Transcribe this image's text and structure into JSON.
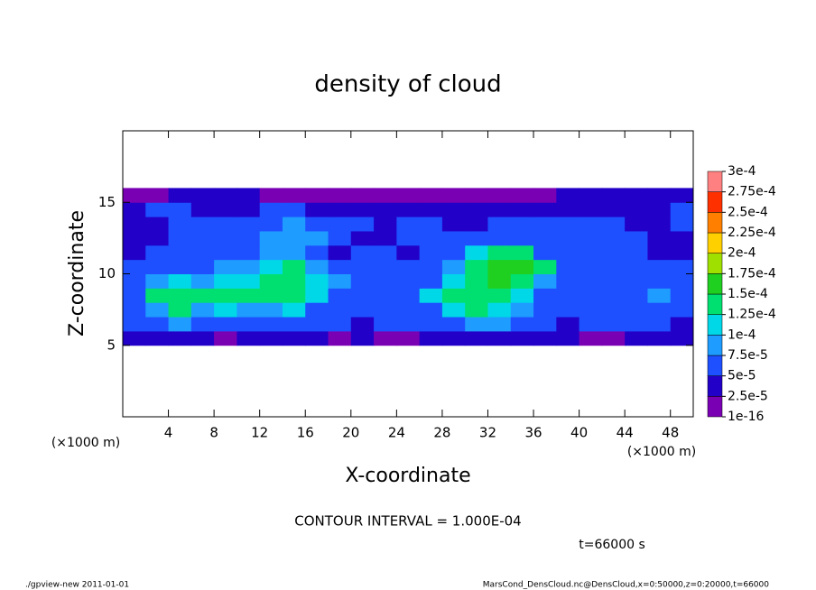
{
  "chart_data": {
    "type": "heatmap",
    "title": "density of cloud",
    "x_label": "X-coordinate",
    "y_label": "Z-coordinate",
    "x_unit": "(×1000 m)",
    "y_unit": "(×1000 m)",
    "annotation": "CONTOUR INTERVAL = 1.000E-04",
    "time_label": "t=66000 s",
    "footer_left": "./gpview-new  2011-01-01",
    "footer_right": "MarsCond_DensCloud.nc@DensCloud,x=0:50000,z=0:20000,t=66000",
    "xlim": [
      0,
      50
    ],
    "ylim": [
      0,
      20
    ],
    "xticks": [
      4,
      8,
      12,
      16,
      20,
      24,
      28,
      32,
      36,
      40,
      44,
      48
    ],
    "yticks": [
      5,
      10,
      15
    ],
    "cell_width": 2,
    "cell_height": 1,
    "x": [
      1,
      3,
      5,
      7,
      9,
      11,
      13,
      15,
      17,
      19,
      21,
      23,
      25,
      27,
      29,
      31,
      33,
      35,
      37,
      39,
      41,
      43,
      45,
      47,
      49
    ],
    "y": [
      5.5,
      6.5,
      7.5,
      8.5,
      9.5,
      10.5,
      11.5,
      12.5,
      13.5,
      14.5,
      15.5
    ],
    "values": [
      [
        3e-05,
        3e-05,
        3e-05,
        3e-05,
        1e-05,
        3e-05,
        3e-05,
        3e-05,
        3e-05,
        1e-05,
        3e-05,
        1e-05,
        1e-05,
        3e-05,
        3e-05,
        3e-05,
        3e-05,
        3e-05,
        3e-05,
        3e-05,
        1e-05,
        1e-05,
        3e-05,
        3e-05,
        3e-05
      ],
      [
        6e-05,
        6e-05,
        8.5e-05,
        6e-05,
        6e-05,
        6e-05,
        6e-05,
        6e-05,
        6e-05,
        6e-05,
        3e-05,
        6e-05,
        6e-05,
        6e-05,
        6e-05,
        8.5e-05,
        8.5e-05,
        6e-05,
        6e-05,
        3e-05,
        6e-05,
        6e-05,
        6e-05,
        6e-05,
        3e-05
      ],
      [
        6e-05,
        8.5e-05,
        0.00013,
        8.5e-05,
        0.00011,
        8.5e-05,
        8.5e-05,
        0.00011,
        6e-05,
        6e-05,
        6e-05,
        6e-05,
        6e-05,
        6e-05,
        0.00011,
        0.00013,
        0.00011,
        8.5e-05,
        6e-05,
        6e-05,
        6e-05,
        6e-05,
        6e-05,
        6e-05,
        6e-05
      ],
      [
        6e-05,
        0.00013,
        0.00013,
        0.00013,
        0.00013,
        0.00013,
        0.00013,
        0.00013,
        0.00011,
        6e-05,
        6e-05,
        6e-05,
        6e-05,
        0.00011,
        0.00013,
        0.00013,
        0.00013,
        0.00011,
        6e-05,
        6e-05,
        6e-05,
        6e-05,
        6e-05,
        8.5e-05,
        6e-05
      ],
      [
        6e-05,
        8.5e-05,
        0.00011,
        8.5e-05,
        0.00011,
        0.00011,
        0.00013,
        0.00013,
        0.00011,
        8.5e-05,
        6e-05,
        6e-05,
        6e-05,
        6e-05,
        0.00011,
        0.00013,
        0.00016,
        0.00013,
        8.5e-05,
        6e-05,
        6e-05,
        6e-05,
        6e-05,
        6e-05,
        6e-05
      ],
      [
        6e-05,
        6e-05,
        6e-05,
        6e-05,
        8.5e-05,
        8.5e-05,
        0.00011,
        0.00013,
        8.5e-05,
        6e-05,
        6e-05,
        6e-05,
        6e-05,
        6e-05,
        8.5e-05,
        0.00013,
        0.00016,
        0.00016,
        0.00013,
        6e-05,
        6e-05,
        6e-05,
        6e-05,
        6e-05,
        6e-05
      ],
      [
        3e-05,
        6e-05,
        6e-05,
        6e-05,
        6e-05,
        6e-05,
        8.5e-05,
        8.5e-05,
        6e-05,
        3e-05,
        6e-05,
        6e-05,
        3e-05,
        6e-05,
        6e-05,
        0.00011,
        0.00013,
        0.00013,
        6e-05,
        6e-05,
        6e-05,
        6e-05,
        6e-05,
        3e-05,
        3e-05
      ],
      [
        3e-05,
        3e-05,
        6e-05,
        6e-05,
        6e-05,
        6e-05,
        8.5e-05,
        8.5e-05,
        8.5e-05,
        6e-05,
        3e-05,
        3e-05,
        6e-05,
        6e-05,
        6e-05,
        6e-05,
        6e-05,
        6e-05,
        6e-05,
        6e-05,
        6e-05,
        6e-05,
        6e-05,
        3e-05,
        3e-05
      ],
      [
        3e-05,
        3e-05,
        6e-05,
        6e-05,
        6e-05,
        6e-05,
        6e-05,
        8.5e-05,
        6e-05,
        6e-05,
        6e-05,
        3e-05,
        6e-05,
        6e-05,
        3e-05,
        3e-05,
        6e-05,
        6e-05,
        6e-05,
        6e-05,
        6e-05,
        6e-05,
        3e-05,
        3e-05,
        6e-05
      ],
      [
        3e-05,
        6e-05,
        6e-05,
        3e-05,
        3e-05,
        3e-05,
        6e-05,
        6e-05,
        3e-05,
        3e-05,
        3e-05,
        3e-05,
        3e-05,
        3e-05,
        3e-05,
        3e-05,
        3e-05,
        3e-05,
        3e-05,
        3e-05,
        3e-05,
        3e-05,
        3e-05,
        3e-05,
        6e-05
      ],
      [
        1e-05,
        1e-05,
        3e-05,
        3e-05,
        3e-05,
        3e-05,
        1e-05,
        1e-05,
        1e-05,
        1e-05,
        1e-05,
        1e-05,
        1e-05,
        1e-05,
        1e-05,
        1e-05,
        1e-05,
        1e-05,
        1e-05,
        3e-05,
        3e-05,
        3e-05,
        3e-05,
        3e-05,
        3e-05
      ]
    ],
    "levels": [
      {
        "value": 1e-16,
        "label": "1e-16"
      },
      {
        "value": 2.5e-05,
        "label": "2.5e-5"
      },
      {
        "value": 5e-05,
        "label": "5e-5"
      },
      {
        "value": 7.5e-05,
        "label": "7.5e-5"
      },
      {
        "value": 0.0001,
        "label": "1e-4"
      },
      {
        "value": 0.000125,
        "label": "1.25e-4"
      },
      {
        "value": 0.00015,
        "label": "1.5e-4"
      },
      {
        "value": 0.000175,
        "label": "1.75e-4"
      },
      {
        "value": 0.0002,
        "label": "2e-4"
      },
      {
        "value": 0.000225,
        "label": "2.25e-4"
      },
      {
        "value": 0.00025,
        "label": "2.5e-4"
      },
      {
        "value": 0.000275,
        "label": "2.75e-4"
      },
      {
        "value": 0.0003,
        "label": "3e-4"
      }
    ],
    "colors": [
      "#7a00b4",
      "#2200c8",
      "#1e50ff",
      "#1e9cff",
      "#00d8e8",
      "#00e070",
      "#20d020",
      "#a0e000",
      "#ffd000",
      "#ff8000",
      "#ff3000",
      "#ff8080"
    ]
  }
}
